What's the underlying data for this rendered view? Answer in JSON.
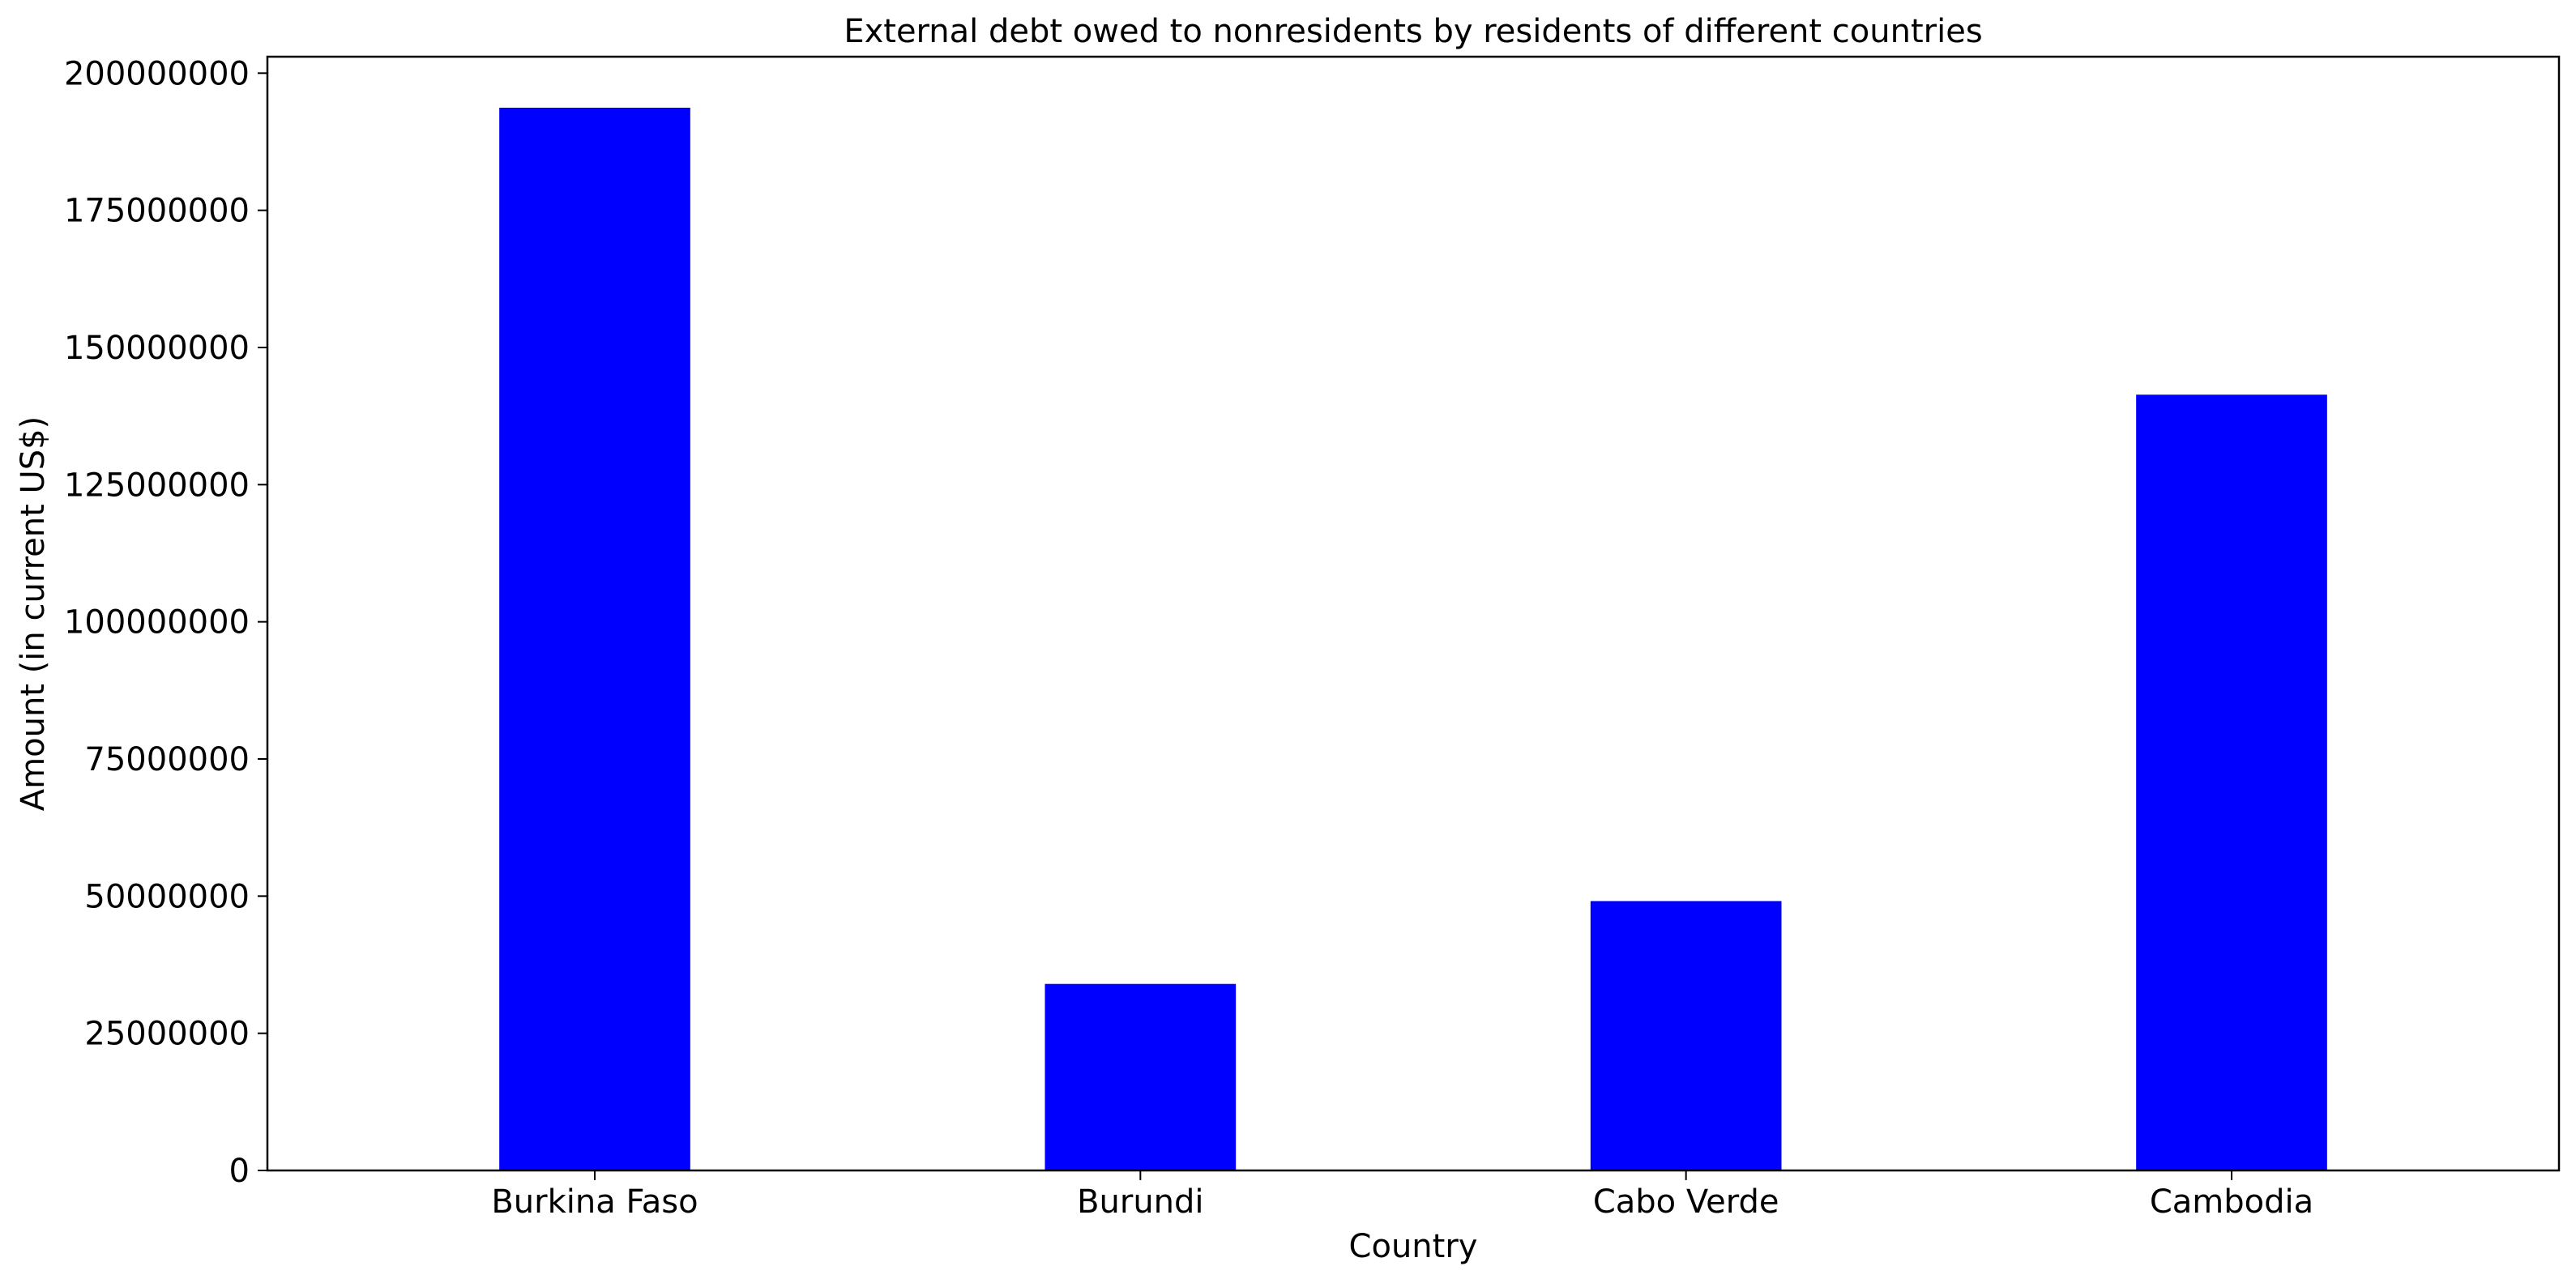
{
  "chart_data": {
    "type": "bar",
    "title": "External debt owed to nonresidents by residents of different countries",
    "xlabel": "Country",
    "ylabel": "Amount (in current US$)",
    "categories": [
      "Burkina Faso",
      "Burundi",
      "Cabo Verde",
      "Cambodia"
    ],
    "values": [
      193700000,
      34000000,
      49100000,
      141400000
    ],
    "ylim": [
      0,
      203000000
    ],
    "yticks": [
      0,
      25000000,
      50000000,
      75000000,
      100000000,
      125000000,
      150000000,
      175000000,
      200000000
    ],
    "ytick_labels": [
      "0",
      "25000000",
      "50000000",
      "75000000",
      "100000000",
      "125000000",
      "150000000",
      "175000000",
      "200000000"
    ],
    "bar_color": "#0000ff",
    "grid": false,
    "legend": false
  }
}
